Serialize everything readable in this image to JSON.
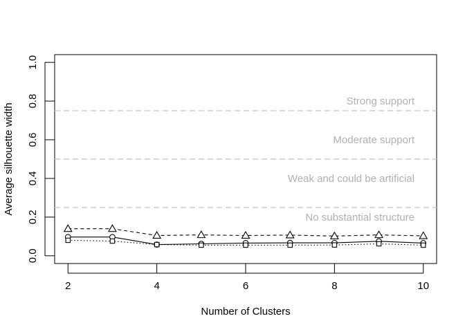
{
  "chart_data": {
    "type": "line",
    "title": "",
    "xlabel": "Number of Clusters",
    "ylabel": "Average silhouette width",
    "xlim": [
      1.7,
      10.3
    ],
    "ylim": [
      -0.04,
      1.04
    ],
    "x_ticks": [
      2,
      4,
      6,
      8,
      10
    ],
    "y_ticks": [
      0.0,
      0.2,
      0.4,
      0.6,
      0.8,
      1.0
    ],
    "y_tick_labels": [
      "0.0",
      "0.2",
      "0.4",
      "0.6",
      "0.8",
      "1.0"
    ],
    "grid": false,
    "legend": "none",
    "x": [
      2,
      3,
      4,
      5,
      6,
      7,
      8,
      9,
      10
    ],
    "series": [
      {
        "values": [
          0.14,
          0.14,
          0.105,
          0.108,
          0.105,
          0.107,
          0.102,
          0.108,
          0.103
        ],
        "marker": "triangle",
        "line_style": "dashed",
        "color": "#000000"
      },
      {
        "values": [
          0.097,
          0.097,
          0.058,
          0.062,
          0.066,
          0.067,
          0.067,
          0.075,
          0.066
        ],
        "marker": "circle",
        "line_style": "solid",
        "color": "#000000"
      },
      {
        "values": [
          0.08,
          0.076,
          0.058,
          0.055,
          0.055,
          0.055,
          0.056,
          0.062,
          0.055
        ],
        "marker": "square",
        "line_style": "dotted",
        "color": "#000000"
      }
    ],
    "reference_lines": [
      {
        "y": 0.75,
        "label": "Strong support"
      },
      {
        "y": 0.5,
        "label": "Moderate support"
      },
      {
        "y": 0.25,
        "label": "Weak and could be artificial"
      }
    ],
    "band_labels": [
      {
        "y": 0.8,
        "text": "Strong support"
      },
      {
        "y": 0.6,
        "text": "Moderate support"
      },
      {
        "y": 0.4,
        "text": "Weak and could be artificial"
      },
      {
        "y": 0.2,
        "text": "No substantial structure"
      }
    ],
    "reference_line_color": "#c8c8c8",
    "band_label_color": "#b0b0b0"
  }
}
